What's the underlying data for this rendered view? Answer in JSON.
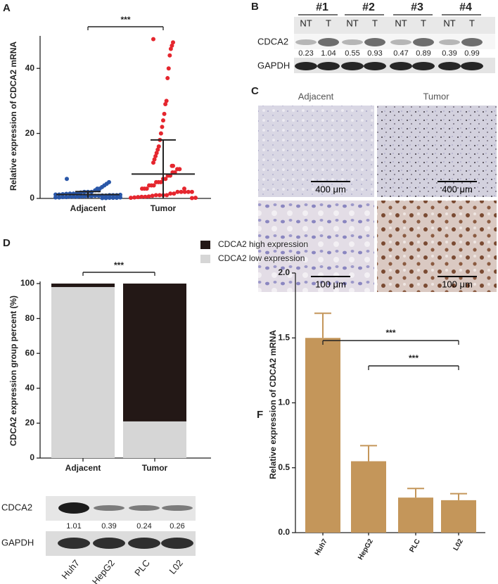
{
  "chart_data": [
    {
      "type": "strip",
      "label": "A",
      "y_label": "Relative expression of CDCA2 mRNA",
      "categories": [
        "Adjacent",
        "Tumor"
      ],
      "colors": [
        "#2a57a8",
        "#e5262e"
      ],
      "values": [
        [
          6,
          5,
          4.5,
          4,
          3.5,
          3,
          3,
          2.5,
          2.5,
          2,
          2,
          2,
          1.8,
          1.6,
          1.5,
          1.5,
          1.4,
          1.3,
          1.2,
          1.2,
          1.1,
          1,
          1,
          1,
          0.9,
          0.9,
          0.8,
          0.8,
          0.7,
          0.7,
          0.6,
          0.6,
          0.5,
          0.5,
          0.5,
          0.4,
          0.4,
          0.3,
          0.3,
          0.3,
          0.2,
          0.2,
          0.2,
          0.1,
          0.1
        ],
        [
          49,
          48,
          47,
          46,
          44,
          40,
          37,
          30,
          29,
          26,
          24,
          22,
          20,
          18,
          16,
          15,
          14,
          13,
          12,
          11,
          10,
          10,
          9,
          9,
          8,
          8,
          7,
          7,
          6,
          6,
          5,
          5,
          5,
          4,
          4,
          4,
          3,
          3,
          3,
          3,
          2,
          2,
          2,
          2,
          2,
          1.5,
          1.5,
          1,
          1,
          1,
          1,
          0.8,
          0.6,
          0.5,
          0.5,
          0.4,
          0.3,
          0.2,
          0.2,
          0.1
        ]
      ],
      "means": [
        1.2,
        7.5
      ],
      "sds": [
        0.9,
        10.5
      ],
      "ylim": [
        0,
        50
      ],
      "yticks": [
        0,
        20,
        40
      ],
      "annotation": "***"
    },
    {
      "type": "stacked_bar",
      "label": "D",
      "y_label": "CDCA2 expression group percent (%)",
      "categories": [
        "Adjacent",
        "Tumor"
      ],
      "series": [
        {
          "name": "CDCA2 high expression",
          "color": "#231816",
          "values": [
            2,
            79
          ]
        },
        {
          "name": "CDCA2 low expression",
          "color": "#d6d6d6",
          "values": [
            98,
            21
          ]
        }
      ],
      "ylim": [
        0,
        100
      ],
      "yticks": [
        0,
        20,
        40,
        60,
        80,
        100
      ],
      "annotation": "***"
    },
    {
      "type": "bar",
      "label": "F",
      "y_label": "Relative expression of CDCA2 mRNA",
      "categories": [
        "Huh7",
        "HepG2",
        "PLC",
        "L02"
      ],
      "values": [
        1.5,
        0.55,
        0.27,
        0.25
      ],
      "errors": [
        0.19,
        0.12,
        0.07,
        0.05
      ],
      "color": "#c4965a",
      "ylim": [
        0,
        2
      ],
      "yticks": [
        {
          "value": 0,
          "label": "0.0"
        },
        {
          "value": 0.5,
          "label": "0.5"
        },
        {
          "value": 1,
          "label": "1.0"
        },
        {
          "value": 1.5,
          "label": "1.5"
        },
        {
          "value": 2,
          "label": "2.0"
        }
      ],
      "annotations": [
        "***",
        "***"
      ]
    }
  ],
  "blot_b": {
    "label": "B",
    "groups": [
      "#1",
      "#2",
      "#3",
      "#4"
    ],
    "lanes": [
      "NT",
      "T",
      "NT",
      "T",
      "NT",
      "T",
      "NT",
      "T"
    ],
    "rows": [
      "CDCA2",
      "GAPDH"
    ],
    "quant": [
      "0.23",
      "1.04",
      "0.55",
      "0.93",
      "0.47",
      "0.89",
      "0.39",
      "0.99"
    ]
  },
  "ihc": {
    "label": "C",
    "columns": [
      "Adjacent",
      "Tumor"
    ],
    "scale_bars": [
      "400 μm",
      "400 μm",
      "100 μm",
      "100 μm"
    ]
  },
  "blot_e": {
    "rows": [
      "CDCA2",
      "GAPDH"
    ],
    "quant": [
      "1.01",
      "0.39",
      "0.24",
      "0.26"
    ],
    "lanes": [
      "Huh7",
      "HepG2",
      "PLC",
      "L02"
    ]
  }
}
